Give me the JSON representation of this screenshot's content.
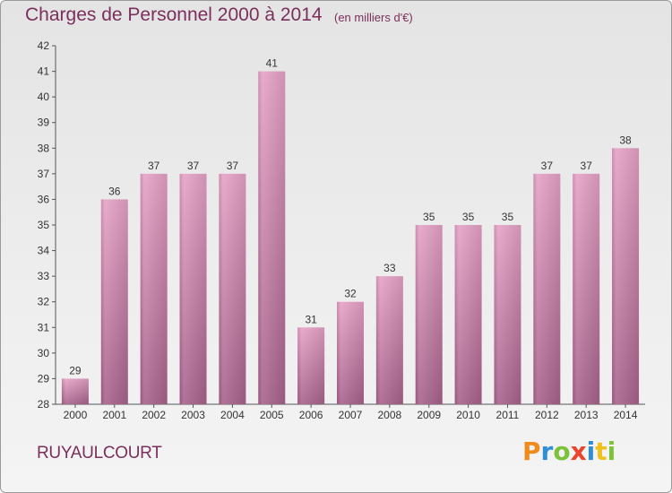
{
  "chart_data": {
    "type": "bar",
    "title": "Charges de Personnel 2000 à 2014",
    "subtitle": "(en milliers d'€)",
    "categories": [
      "2000",
      "2001",
      "2002",
      "2003",
      "2004",
      "2005",
      "2006",
      "2007",
      "2008",
      "2009",
      "2010",
      "2011",
      "2012",
      "2013",
      "2014"
    ],
    "values": [
      29,
      36,
      37,
      37,
      37,
      41,
      31,
      32,
      33,
      35,
      35,
      35,
      37,
      37,
      38
    ],
    "ylim": [
      28,
      42
    ],
    "yticks": [
      28,
      29,
      30,
      31,
      32,
      33,
      34,
      35,
      36,
      37,
      38,
      39,
      40,
      41,
      42
    ],
    "grid": false,
    "bar_color": "#d7709f"
  },
  "town": "RUYAULCOURT",
  "logo": {
    "text": "Proxiti"
  }
}
